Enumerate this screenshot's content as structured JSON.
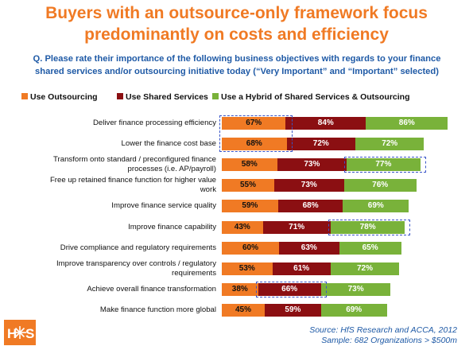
{
  "title_line1": "Buyers with an outsource-only framework focus",
  "title_line2": "predominantly on costs and efficiency",
  "question_line1": "Q. Please rate their importance of the following business objectives with regards to your finance",
  "question_line2": "shared services and/or outsourcing initiative today (“Very Important” and “Important” selected)",
  "source_line1": "Source: HfS Research and ACCA, 2012",
  "source_line2": "Sample: 682 Organizations > $500m",
  "logo": {
    "text_left": "H",
    "text_right": "S",
    "icon": "starburst-icon"
  },
  "colors": {
    "outsourcing": "#f07a24",
    "shared": "#8b0f12",
    "hybrid": "#79b23a",
    "title": "#f07a24",
    "question": "#1f5aa6",
    "highlight": "#3a55c8"
  },
  "chart_data": {
    "type": "bar",
    "orientation": "horizontal",
    "stacked": true,
    "categories": [
      [
        "Deliver finance processing efficiency"
      ],
      [
        "Lower the finance cost base"
      ],
      [
        "Transform onto standard / preconfigured finance",
        "processes (i.e. AP/payroll)"
      ],
      [
        "Free up retained finance function for higher value",
        "work"
      ],
      [
        "Improve finance service quality"
      ],
      [
        "Improve finance capability"
      ],
      [
        "Drive compliance and regulatory requirements"
      ],
      [
        "Improve transparency over controls / regulatory",
        "requirements"
      ],
      [
        "Achieve overall finance transformation"
      ],
      [
        "Make finance function more global"
      ]
    ],
    "series": [
      {
        "name": "Use Outsourcing",
        "color": "#f07a24",
        "values": [
          67,
          68,
          58,
          55,
          59,
          43,
          60,
          53,
          38,
          45
        ]
      },
      {
        "name": "Use Shared Services",
        "color": "#8b0f12",
        "values": [
          84,
          72,
          73,
          73,
          68,
          71,
          63,
          61,
          66,
          59
        ]
      },
      {
        "name": "Use a Hybrid of Shared Services & Outsourcing",
        "color": "#79b23a",
        "values": [
          86,
          72,
          77,
          76,
          69,
          78,
          65,
          72,
          73,
          69
        ]
      }
    ],
    "legend_position": "top",
    "highlights": [
      {
        "row": 0,
        "segment": 0
      },
      {
        "row": 1,
        "segment": 0
      },
      {
        "row": 2,
        "segment": 2
      },
      {
        "row": 5,
        "segment": 2
      },
      {
        "row": 8,
        "segment": 1
      }
    ]
  }
}
